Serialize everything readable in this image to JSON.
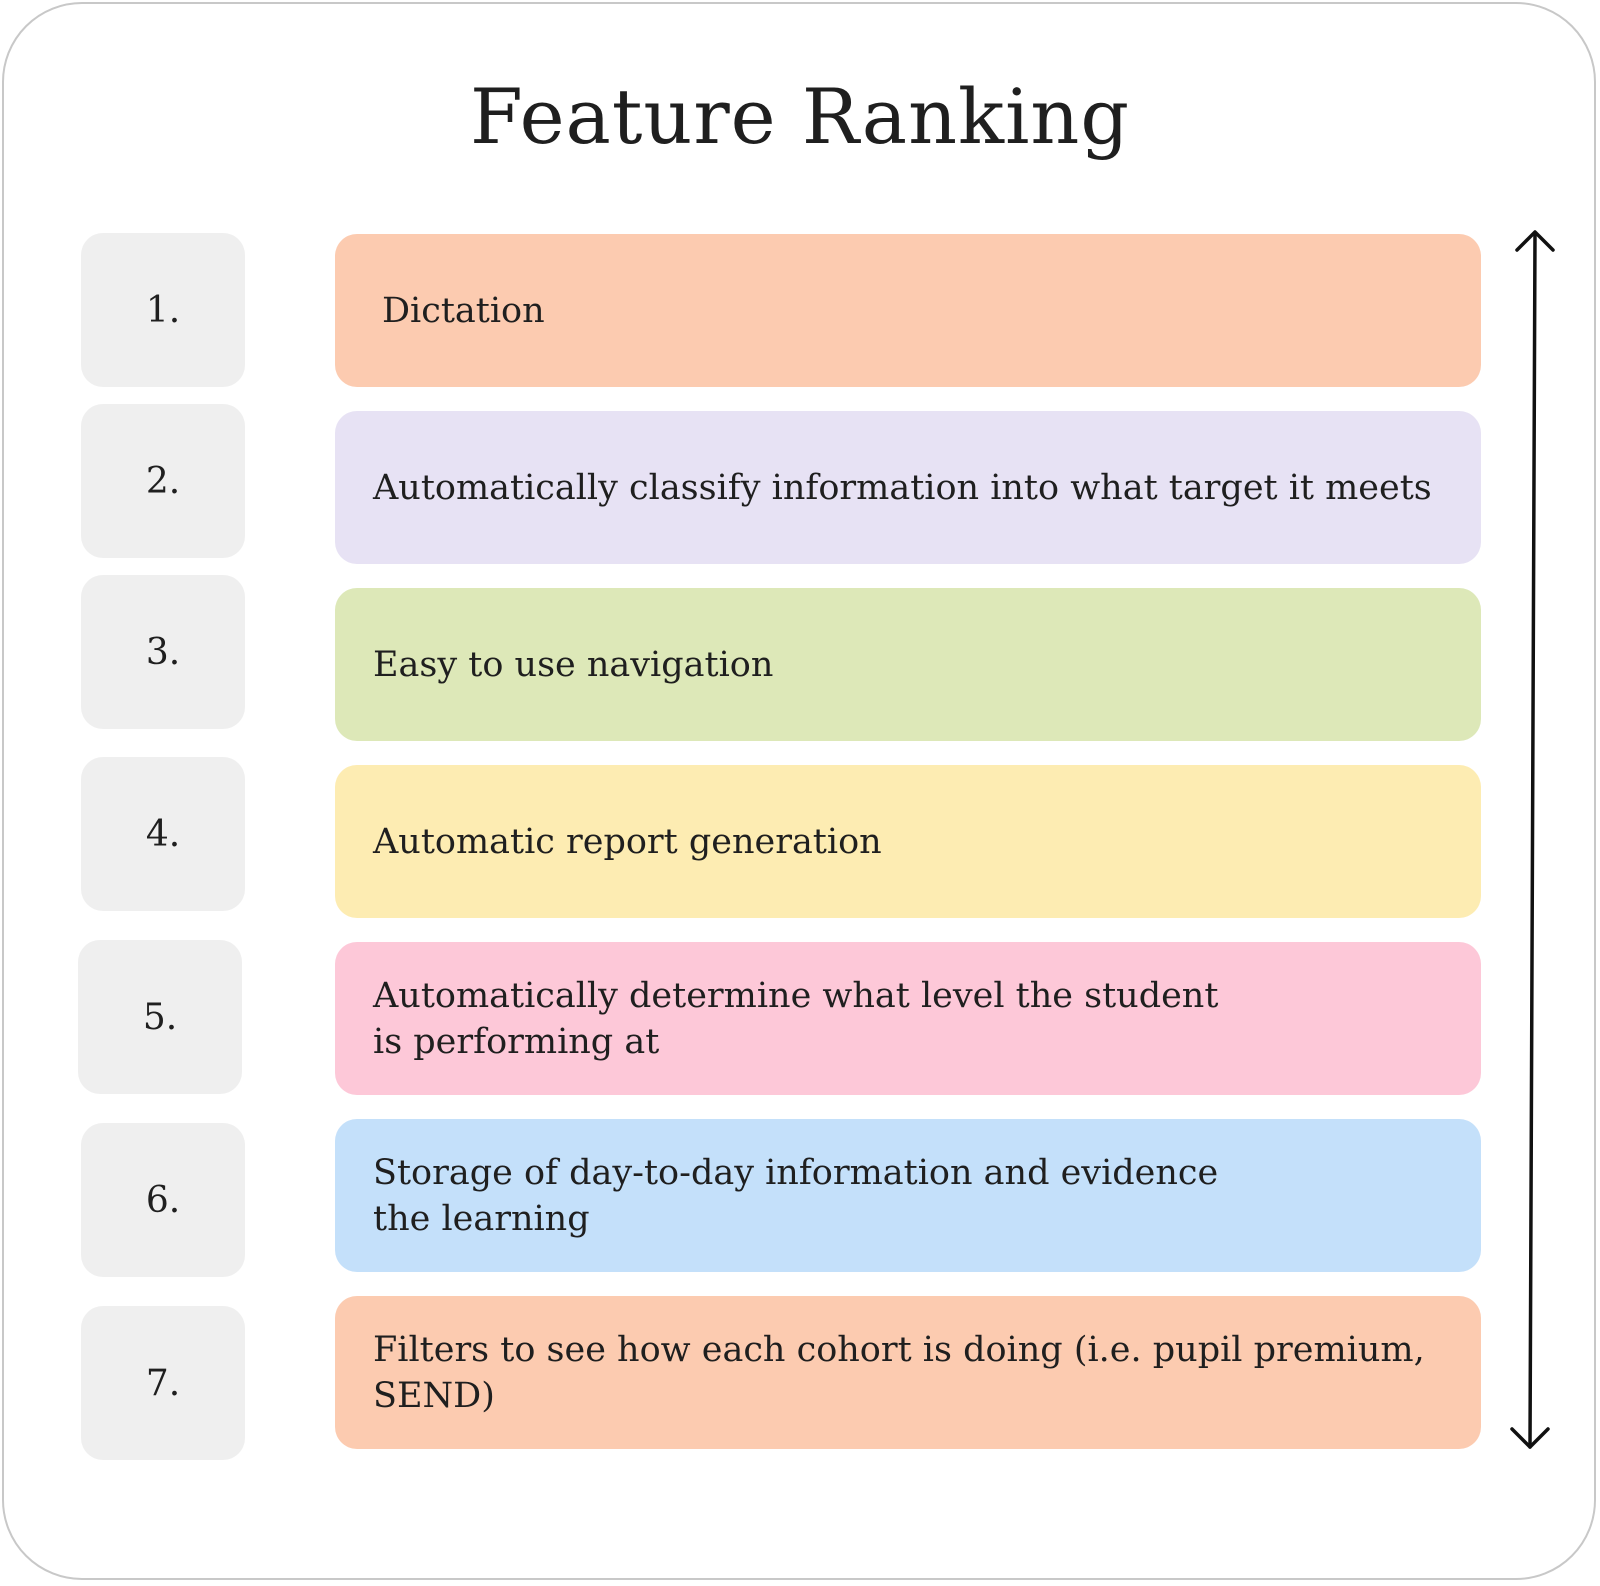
{
  "title": "Feature Ranking",
  "ranks": [
    {
      "number": "1.",
      "label": "Dictation",
      "color": "#fccbb0"
    },
    {
      "number": "2.",
      "label": "Automatically classify information into what target it meets",
      "color": "#e7e2f4"
    },
    {
      "number": "3.",
      "label": "Easy to use navigation",
      "color": "#dde8b8"
    },
    {
      "number": "4.",
      "label": "Automatic report generation",
      "color": "#fdecb2"
    },
    {
      "number": "5.",
      "label": "Automatically determine what level the student\nis performing at",
      "color": "#fdc8d8"
    },
    {
      "number": "6.",
      "label": "Storage of day-to-day information and evidence\nthe learning",
      "color": "#c4e0fa"
    },
    {
      "number": "7.",
      "label": "Filters to see how each cohort is doing (i.e. pupil premium,\nSEND)",
      "color": "#fccbb0"
    }
  ],
  "colors": {
    "number_box": "#efefef",
    "border": "#c8c8c8",
    "text": "#1f1f1f"
  },
  "icons": {
    "ranking_arrow": "double-headed-vertical-arrow-icon"
  }
}
